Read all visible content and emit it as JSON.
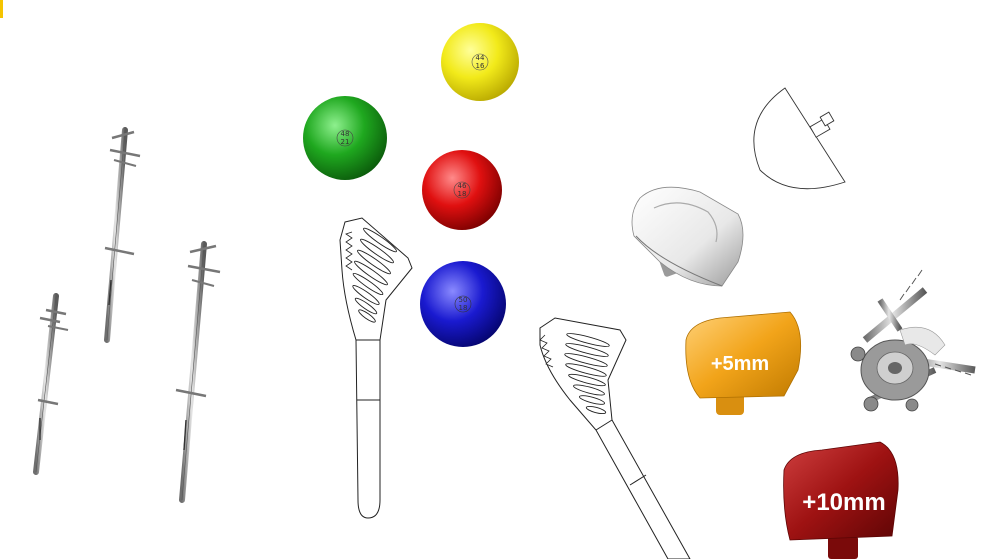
{
  "colors": {
    "background": "#ffffff",
    "ball_yellow": "#f2ea1a",
    "ball_green": "#1fa81f",
    "ball_red": "#e01010",
    "ball_blue": "#1a1ad0",
    "spacer_orange": "#f2a41a",
    "spacer_darkred": "#9e1212",
    "metal": "#a8a8a8",
    "line": "#222222"
  },
  "head_balls": [
    {
      "color": "yellow",
      "line1": "44",
      "line2": "16"
    },
    {
      "color": "green",
      "line1": "48",
      "line2": "21"
    },
    {
      "color": "red",
      "line1": "46",
      "line2": "18"
    },
    {
      "color": "blue",
      "line1": "50",
      "line2": "18"
    }
  ],
  "spacers": [
    {
      "color": "orange",
      "label": "+5mm"
    },
    {
      "color": "darkred",
      "label": "+10mm"
    }
  ],
  "icons": [
    "intramedullary-nail-icon",
    "humeral-stem-outline-icon",
    "humeral-head-ball-icon",
    "glenoid-cup-icon",
    "half-dome-outline-icon",
    "baseplate-with-screws-icon",
    "offset-spacer-icon"
  ]
}
